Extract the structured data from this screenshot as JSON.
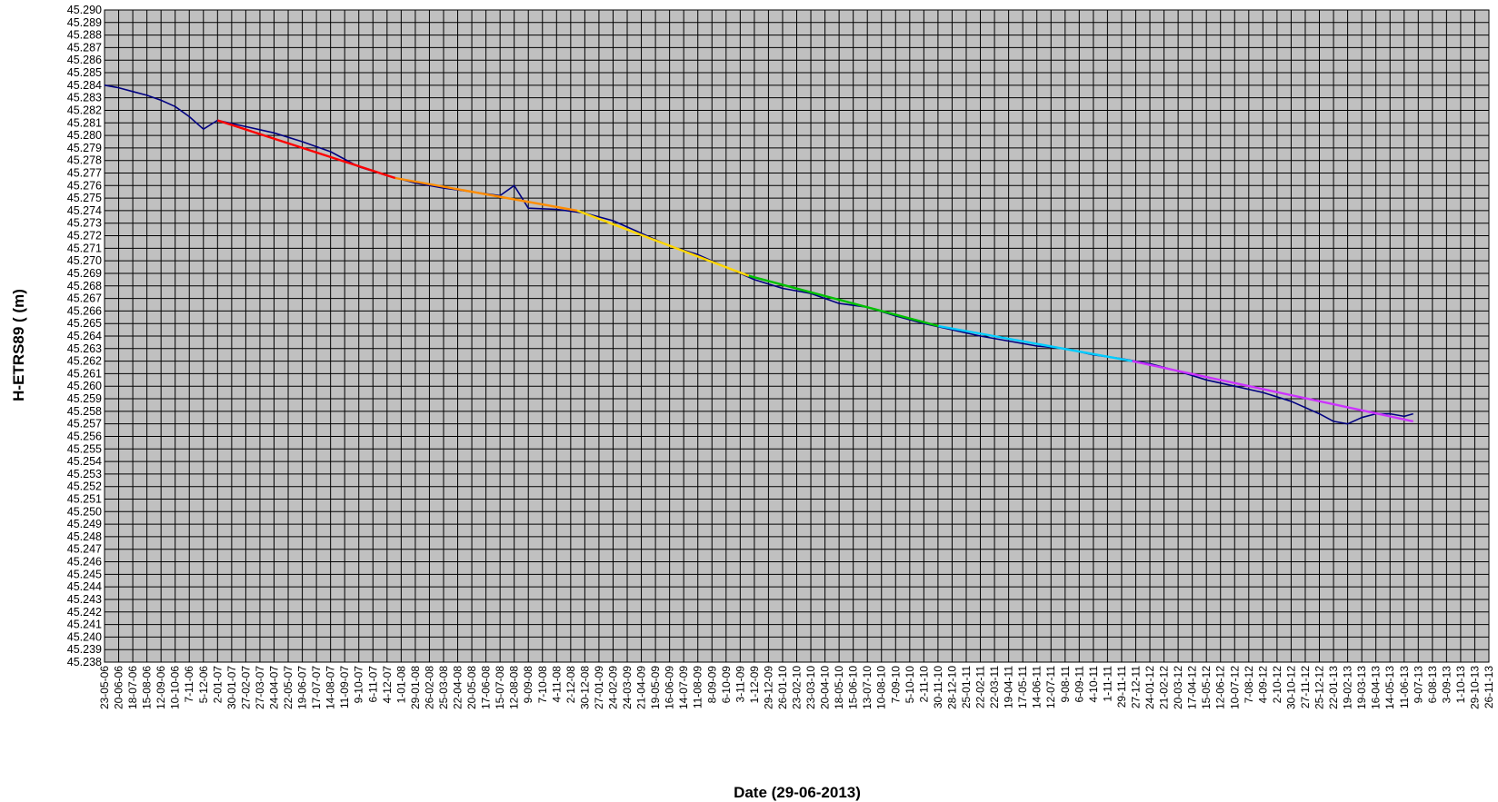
{
  "chart_data": {
    "type": "line",
    "xlabel": "Date (29-06-2013)",
    "ylabel": "H-ETRS89  ( (m)",
    "ylim": [
      45.238,
      45.29
    ],
    "xlim": [
      "2006-05-23",
      "2013-11-26"
    ],
    "grid": true,
    "y_ticks": [
      "45.290",
      "45.289",
      "45.288",
      "45.287",
      "45.286",
      "45.285",
      "45.284",
      "45.283",
      "45.282",
      "45.281",
      "45.280",
      "45.279",
      "45.278",
      "45.277",
      "45.276",
      "45.275",
      "45.274",
      "45.273",
      "45.272",
      "45.271",
      "45.270",
      "45.269",
      "45.268",
      "45.267",
      "45.266",
      "45.265",
      "45.264",
      "45.263",
      "45.262",
      "45.261",
      "45.260",
      "45.259",
      "45.258",
      "45.257",
      "45.256",
      "45.255",
      "45.254",
      "45.253",
      "45.252",
      "45.251",
      "45.250",
      "45.249",
      "45.248",
      "45.247",
      "45.246",
      "45.245",
      "45.244",
      "45.243",
      "45.242",
      "45.241",
      "45.240",
      "45.239",
      "45.238"
    ],
    "x_ticks": [
      "23-05-06",
      "20-06-06",
      "18-07-06",
      "15-08-06",
      "12-09-06",
      "10-10-06",
      "7-11-06",
      "5-12-06",
      "2-01-07",
      "30-01-07",
      "27-02-07",
      "27-03-07",
      "24-04-07",
      "22-05-07",
      "19-06-07",
      "17-07-07",
      "14-08-07",
      "11-09-07",
      "9-10-07",
      "6-11-07",
      "4-12-07",
      "1-01-08",
      "29-01-08",
      "26-02-08",
      "25-03-08",
      "22-04-08",
      "20-05-08",
      "17-06-08",
      "15-07-08",
      "12-08-08",
      "9-09-08",
      "7-10-08",
      "4-11-08",
      "2-12-08",
      "30-12-08",
      "27-01-09",
      "24-02-09",
      "24-03-09",
      "21-04-09",
      "19-05-09",
      "16-06-09",
      "14-07-09",
      "11-08-09",
      "8-09-09",
      "6-10-09",
      "3-11-09",
      "1-12-09",
      "29-12-09",
      "26-01-10",
      "23-02-10",
      "23-03-10",
      "20-04-10",
      "18-05-10",
      "15-06-10",
      "13-07-10",
      "10-08-10",
      "7-09-10",
      "5-10-10",
      "2-11-10",
      "30-11-10",
      "28-12-10",
      "25-01-11",
      "22-02-11",
      "22-03-11",
      "19-04-11",
      "17-05-11",
      "14-06-11",
      "12-07-11",
      "9-08-11",
      "6-09-11",
      "4-10-11",
      "1-11-11",
      "29-11-11",
      "27-12-11",
      "24-01-12",
      "21-02-12",
      "20-03-12",
      "17-04-12",
      "15-05-12",
      "12-06-12",
      "10-07-12",
      "7-08-12",
      "4-09-12",
      "2-10-12",
      "30-10-12",
      "27-11-12",
      "25-12-12",
      "22-01-13",
      "19-02-13",
      "19-03-13",
      "16-04-13",
      "14-05-13",
      "11-06-13",
      "9-07-13",
      "6-08-13",
      "3-09-13",
      "1-10-13",
      "29-10-13",
      "26-11-13"
    ],
    "series": [
      {
        "color": "#000080",
        "x": [
          "2006-05-23",
          "2006-06-20",
          "2006-07-18",
          "2006-08-15",
          "2006-09-12",
          "2006-10-10",
          "2006-11-07",
          "2006-12-05",
          "2007-01-02",
          "2007-02-27",
          "2007-04-24",
          "2007-06-19",
          "2007-08-14",
          "2007-10-09",
          "2007-12-04",
          "2008-01-29",
          "2008-03-25",
          "2008-05-20",
          "2008-07-15",
          "2008-08-12",
          "2008-09-09",
          "2008-11-04",
          "2008-12-30",
          "2009-02-24",
          "2009-04-21",
          "2009-06-16",
          "2009-08-11",
          "2009-10-06",
          "2009-12-01",
          "2010-01-26",
          "2010-03-23",
          "2010-05-18",
          "2010-07-13",
          "2010-09-07",
          "2010-11-02",
          "2010-12-28",
          "2011-02-22",
          "2011-04-19",
          "2011-06-14",
          "2011-08-09",
          "2011-10-04",
          "2011-11-29",
          "2012-01-24",
          "2012-03-20",
          "2012-05-15",
          "2012-07-10",
          "2012-09-04",
          "2012-10-30",
          "2012-12-25",
          "2013-01-22",
          "2013-02-19",
          "2013-03-19",
          "2013-04-16",
          "2013-05-14",
          "2013-06-11",
          "2013-06-29"
        ],
        "y": [
          45.284,
          45.2838,
          45.2835,
          45.2832,
          45.2828,
          45.2823,
          45.2815,
          45.2805,
          45.2812,
          45.2807,
          45.2802,
          45.2795,
          45.2787,
          45.2775,
          45.2768,
          45.2762,
          45.2758,
          45.2755,
          45.2752,
          45.276,
          45.2742,
          45.2741,
          45.2738,
          45.2732,
          45.2722,
          45.2712,
          45.2705,
          45.2695,
          45.2685,
          45.2678,
          45.2674,
          45.2666,
          45.2663,
          45.2656,
          45.265,
          45.2645,
          45.264,
          45.2636,
          45.2632,
          45.263,
          45.2625,
          45.2622,
          45.2618,
          45.2612,
          45.2605,
          45.26,
          45.2595,
          45.2588,
          45.2578,
          45.2572,
          45.257,
          45.2575,
          45.2578,
          45.2578,
          45.2576,
          45.2578
        ]
      },
      {
        "color": "#ff0000",
        "x": [
          "2007-01-02",
          "2007-12-20"
        ],
        "y": [
          45.2812,
          45.2766
        ]
      },
      {
        "color": "#ff8c00",
        "x": [
          "2007-12-20",
          "2008-12-15"
        ],
        "y": [
          45.2766,
          45.274
        ]
      },
      {
        "color": "#ffd700",
        "x": [
          "2008-12-15",
          "2009-11-20"
        ],
        "y": [
          45.274,
          45.2688
        ]
      },
      {
        "color": "#00c000",
        "x": [
          "2009-11-20",
          "2010-12-01"
        ],
        "y": [
          45.2688,
          45.2648
        ]
      },
      {
        "color": "#00ccff",
        "x": [
          "2010-12-01",
          "2011-12-20"
        ],
        "y": [
          45.2648,
          45.262
        ]
      },
      {
        "color": "#cc33ff",
        "x": [
          "2011-12-20",
          "2013-06-29"
        ],
        "y": [
          45.262,
          45.2572
        ]
      }
    ]
  }
}
